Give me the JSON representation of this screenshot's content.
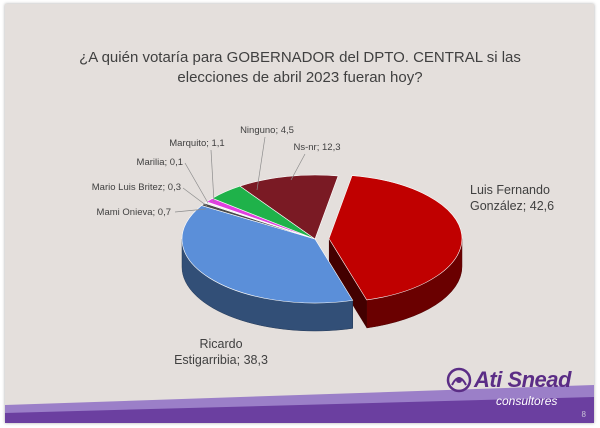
{
  "chart_data": {
    "type": "pie",
    "title": "¿A quién votaría para GOBERNADOR del DPTO. CENTRAL si las elecciones de abril 2023 fueran hoy?",
    "slices": [
      {
        "label": "Luis Fernando González",
        "value": 42.6,
        "color": "#c00000",
        "display": [
          "Luis Fernando",
          "González; 42,6"
        ]
      },
      {
        "label": "Ricardo Estigarribia",
        "value": 38.3,
        "color": "#5b8fd9",
        "display": [
          "Ricardo",
          "Estigarribia; 38,3"
        ]
      },
      {
        "label": "Mami Onieva",
        "value": 0.7,
        "color": "#4a4a4a",
        "display": [
          "Mami Onieva; 0,7"
        ]
      },
      {
        "label": "Mario Luis Britez",
        "value": 0.3,
        "color": "#e8e8e8",
        "display": [
          "Mario Luis Britez; 0,3"
        ]
      },
      {
        "label": "Marilia",
        "value": 0.1,
        "color": "#7cc8e8",
        "display": [
          "Marilia; 0,1"
        ]
      },
      {
        "label": "Marquito",
        "value": 1.1,
        "color": "#e040e0",
        "display": [
          "Marquito; 1,1"
        ]
      },
      {
        "label": "Ninguno",
        "value": 4.5,
        "color": "#1fb24a",
        "display": [
          "Ninguno; 4,5"
        ]
      },
      {
        "label": "Ns-nr",
        "value": 12.3,
        "color": "#7a1a24",
        "display": [
          "Ns-nr; 12,3"
        ]
      }
    ]
  },
  "brand": {
    "name": "Ati Snead",
    "sub": "consultores",
    "colors": {
      "purple": "#6b3fa0",
      "purple_light": "#9b7fc8"
    }
  },
  "page_number": "8"
}
